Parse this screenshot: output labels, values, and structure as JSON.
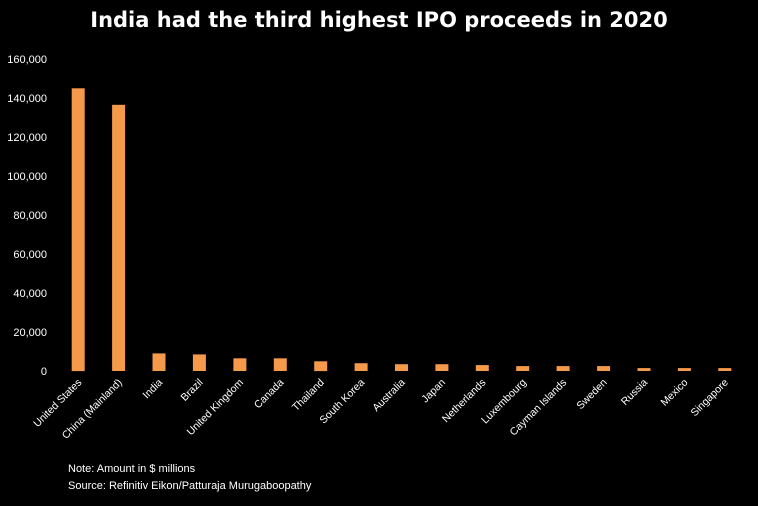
{
  "title": "India had the third highest IPO proceeds in 2020",
  "note": "Note: Amount in $ millions",
  "source": "Source: Refinitiv Eikon/Patturaja Murugaboopathy",
  "colors": {
    "background": "#000000",
    "bar": "#f5994a",
    "text": "#ffffff"
  },
  "chart_data": {
    "type": "bar",
    "title": "India had the third highest IPO proceeds in 2020",
    "xlabel": "",
    "ylabel": "",
    "ylim": [
      0,
      160000
    ],
    "yticks": [
      0,
      20000,
      40000,
      60000,
      80000,
      100000,
      120000,
      140000,
      160000
    ],
    "ytick_labels": [
      "0",
      "20,000",
      "40,000",
      "60,000",
      "80,000",
      "100,000",
      "120,000",
      "140,000",
      "160,000"
    ],
    "grid": false,
    "categories": [
      "United States",
      "China (Mainland)",
      "India",
      "Brazil",
      "United Kingdom",
      "Canada",
      "Thailand",
      "South Korea",
      "Australia",
      "Japan",
      "Netherlands",
      "Luxembourg",
      "Cayman Islands",
      "Sweden",
      "Russia",
      "Mexico",
      "Singapore"
    ],
    "values": [
      145000,
      136500,
      9000,
      8500,
      6500,
      6500,
      5000,
      4000,
      3500,
      3500,
      3000,
      2500,
      2500,
      2500,
      1500,
      1500,
      1500
    ]
  }
}
